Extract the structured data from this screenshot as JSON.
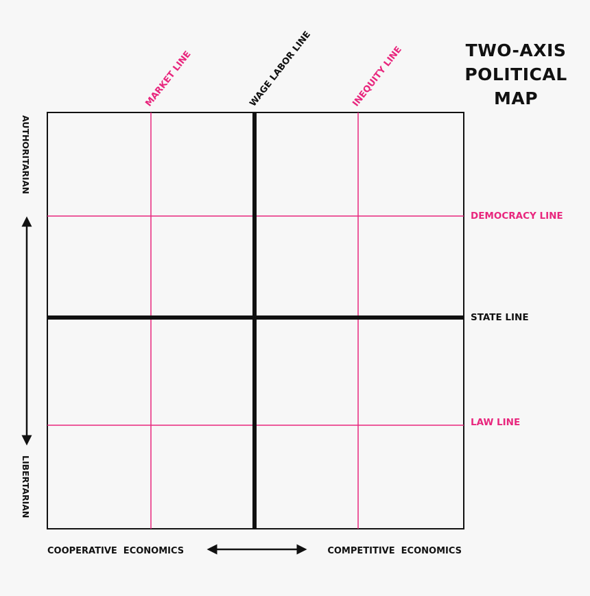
{
  "title": {
    "lines": [
      "TWO-AXIS",
      "POLITICAL",
      "MAP"
    ]
  },
  "top_labels": {
    "market": "MARKET LINE",
    "wage": "WAGE LABOR LINE",
    "inequity": "INEQUITY LINE"
  },
  "right_labels": {
    "democracy": "DEMOCRACY LINE",
    "state": "STATE LINE",
    "law": "LAW LINE"
  },
  "left_axis": {
    "top": "AUTHORITARIAN",
    "bottom": "LIBERTARIAN"
  },
  "bottom_axis": {
    "left": "COOPERATIVE  ECONOMICS",
    "right": "COMPETITIVE  ECONOMICS"
  },
  "colors": {
    "background": "#f7f7f7",
    "accent": "#e8267d",
    "ink": "#111111"
  }
}
